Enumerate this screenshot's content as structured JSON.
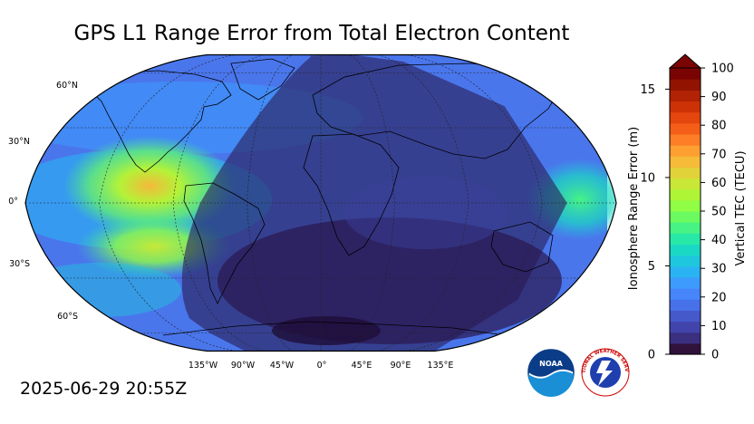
{
  "title": "GPS L1 Range Error from Total Electron Content",
  "timestamp": "2025-06-29 20:55Z",
  "map": {
    "lat_labels": [
      "60°N",
      "30°N",
      "0°",
      "30°S",
      "60°S"
    ],
    "lon_labels": [
      "135°W",
      "90°W",
      "45°W",
      "0°",
      "45°E",
      "90°E",
      "135°E"
    ]
  },
  "colorbar": {
    "tec_ticks": [
      "0",
      "10",
      "20",
      "30",
      "40",
      "50",
      "60",
      "70",
      "80",
      "90",
      "100"
    ],
    "range_ticks": [
      "0",
      "5",
      "10",
      "15"
    ],
    "left_title": "Ionosphere Range Error (m)",
    "right_title": "Vertical TEC (TECU)",
    "colors": [
      "#30123b",
      "#3b2f80",
      "#4145ab",
      "#4559cb",
      "#4771e9",
      "#4685fa",
      "#3d9bfe",
      "#2ab3f3",
      "#1ec7dd",
      "#1ad9c4",
      "#28e8a8",
      "#46f384",
      "#6bfb60",
      "#8ffe45",
      "#aef535",
      "#c9e737",
      "#e2d23a",
      "#f5bb39",
      "#fd9f31",
      "#fd7e26",
      "#f55e19",
      "#e4460d",
      "#cd3207",
      "#b22204",
      "#921300",
      "#7a0403"
    ]
  },
  "logos": {
    "noaa_text": "NOAA",
    "nws_text": "NATIONAL WEATHER SERVICE"
  }
}
